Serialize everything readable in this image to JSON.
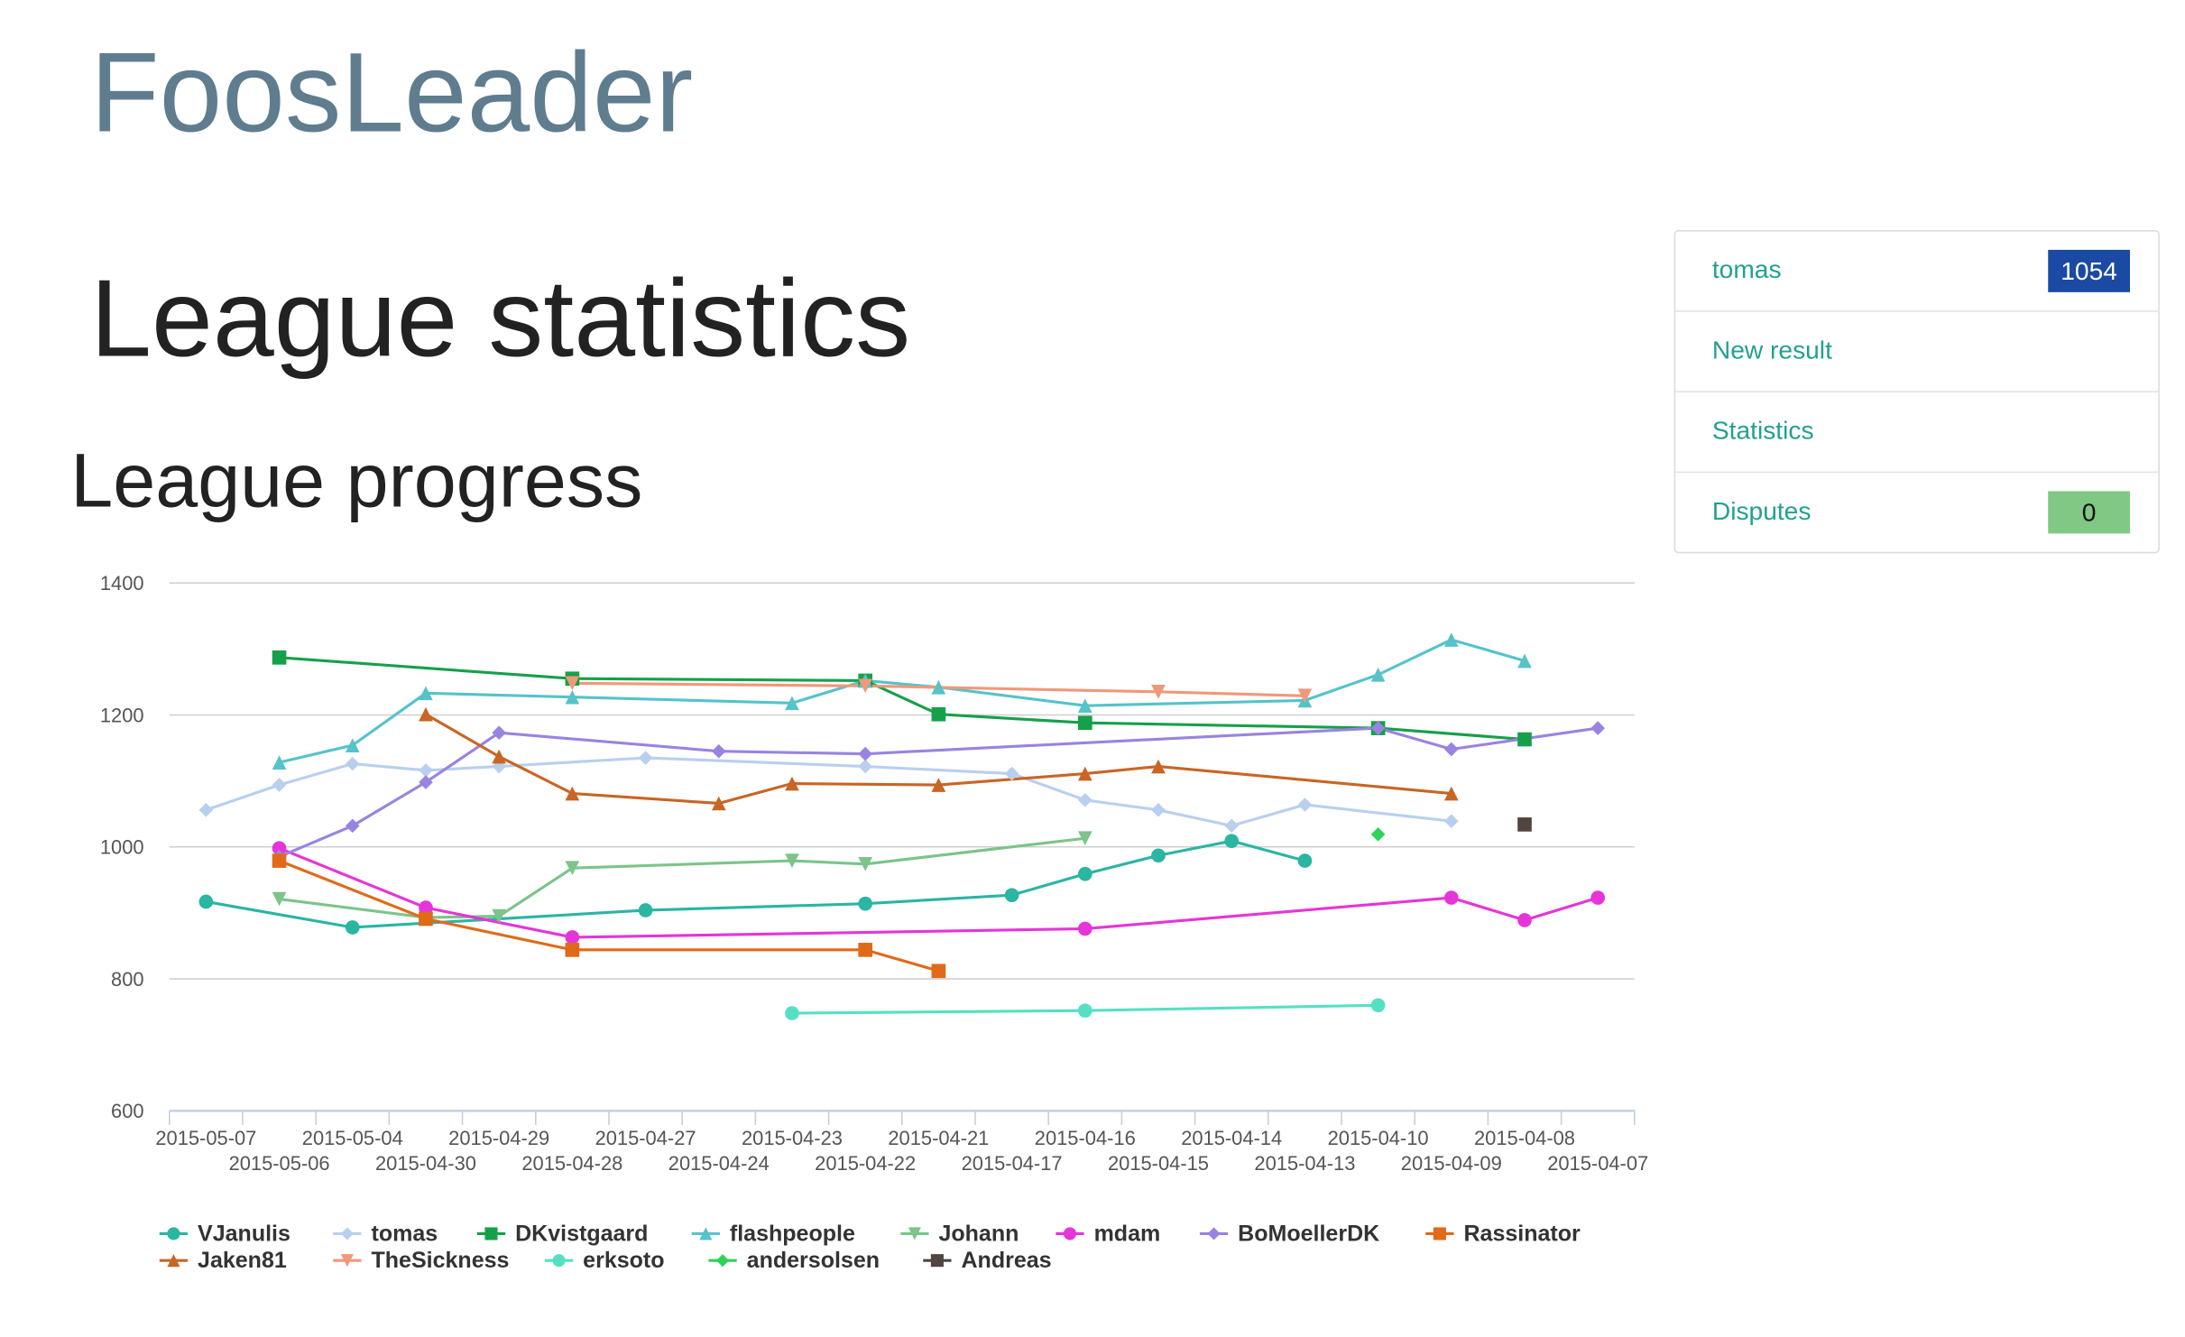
{
  "header": {
    "title": "FoosLeader"
  },
  "page": {
    "title": "League statistics",
    "section_title": "League progress"
  },
  "sidebar": {
    "items": [
      {
        "label": "tomas",
        "badge": 1054,
        "badge_color": "#1a4aa3"
      },
      {
        "label": "New result"
      },
      {
        "label": "Statistics"
      },
      {
        "label": "Disputes",
        "badge": 0,
        "badge_color": "#80c883"
      }
    ]
  },
  "chart_data": {
    "type": "line",
    "categories": [
      "2015-05-07",
      "2015-05-06",
      "2015-05-04",
      "2015-04-30",
      "2015-04-29",
      "2015-04-28",
      "2015-04-27",
      "2015-04-24",
      "2015-04-23",
      "2015-04-22",
      "2015-04-21",
      "2015-04-17",
      "2015-04-16",
      "2015-04-15",
      "2015-04-14",
      "2015-04-13",
      "2015-04-10",
      "2015-04-09",
      "2015-04-08",
      "2015-04-07"
    ],
    "ylim": [
      600,
      1400
    ],
    "yticks": [
      600,
      800,
      1000,
      1200,
      1400
    ],
    "grid": true,
    "connect_nulls": true,
    "legend": "bottom",
    "series": [
      {
        "name": "VJanulis",
        "color": "#2bb5a3",
        "marker": "circle",
        "values": [
          917,
          null,
          878,
          null,
          null,
          null,
          904,
          null,
          null,
          914,
          null,
          927,
          959,
          987,
          1009,
          979,
          null,
          null,
          null,
          null
        ]
      },
      {
        "name": "tomas",
        "color": "#b8d0ee",
        "marker": "diamond",
        "values": [
          1056,
          1094,
          1126,
          1116,
          1122,
          null,
          1135,
          null,
          null,
          1122,
          null,
          1111,
          1071,
          1056,
          1032,
          1064,
          null,
          1039,
          null,
          null
        ]
      },
      {
        "name": "DKvistgaard",
        "color": "#16a04a",
        "marker": "square",
        "values": [
          null,
          1287,
          null,
          null,
          null,
          1255,
          null,
          null,
          null,
          1252,
          1201,
          null,
          1188,
          null,
          null,
          null,
          1180,
          null,
          1163,
          null
        ]
      },
      {
        "name": "flashpeople",
        "color": "#55c3c9",
        "marker": "triangle",
        "values": [
          null,
          1128,
          1154,
          1233,
          null,
          1227,
          null,
          null,
          1218,
          1252,
          1242,
          null,
          1214,
          null,
          null,
          1222,
          1261,
          1314,
          1282,
          null
        ]
      },
      {
        "name": "Johann",
        "color": "#7cc48a",
        "marker": "triangle-down",
        "values": [
          null,
          921,
          null,
          893,
          895,
          968,
          null,
          null,
          979,
          974,
          null,
          null,
          1013,
          null,
          null,
          null,
          null,
          null,
          null,
          null
        ]
      },
      {
        "name": "mdam",
        "color": "#e535d8",
        "marker": "circle",
        "values": [
          null,
          998,
          null,
          908,
          null,
          863,
          null,
          null,
          null,
          null,
          null,
          null,
          876,
          null,
          null,
          null,
          null,
          923,
          889,
          923
        ]
      },
      {
        "name": "BoMoellerDK",
        "color": "#9a83e0",
        "marker": "diamond",
        "values": [
          null,
          985,
          1032,
          1098,
          1173,
          null,
          null,
          1145,
          null,
          1141,
          null,
          null,
          null,
          null,
          null,
          null,
          1180,
          1148,
          null,
          1180
        ]
      },
      {
        "name": "Rassinator",
        "color": "#e06a1a",
        "marker": "square",
        "values": [
          null,
          979,
          null,
          891,
          null,
          844,
          null,
          null,
          null,
          844,
          812,
          null,
          null,
          null,
          null,
          null,
          null,
          null,
          null,
          null
        ]
      },
      {
        "name": "Jaken81",
        "color": "#c96525",
        "marker": "triangle",
        "values": [
          null,
          null,
          null,
          1201,
          1137,
          1081,
          null,
          1066,
          1096,
          null,
          1094,
          null,
          1111,
          1122,
          null,
          null,
          null,
          1081,
          null,
          null
        ]
      },
      {
        "name": "TheSickness",
        "color": "#f0987a",
        "marker": "triangle-down",
        "values": [
          null,
          null,
          null,
          null,
          null,
          1248,
          null,
          null,
          null,
          1244,
          null,
          null,
          null,
          1235,
          null,
          1229,
          null,
          null,
          null,
          null
        ]
      },
      {
        "name": "erksoto",
        "color": "#55e0c4",
        "marker": "circle",
        "values": [
          null,
          null,
          null,
          null,
          null,
          null,
          null,
          null,
          748,
          null,
          null,
          null,
          752,
          null,
          null,
          null,
          760,
          null,
          null,
          null
        ]
      },
      {
        "name": "andersolsen",
        "color": "#2dd35a",
        "marker": "diamond",
        "values": [
          null,
          null,
          null,
          null,
          null,
          null,
          null,
          null,
          null,
          null,
          null,
          null,
          null,
          null,
          null,
          null,
          1019,
          null,
          null,
          null
        ]
      },
      {
        "name": "Andreas",
        "color": "#504540",
        "marker": "square",
        "values": [
          null,
          null,
          null,
          null,
          null,
          null,
          null,
          null,
          null,
          null,
          null,
          null,
          null,
          null,
          null,
          null,
          null,
          null,
          1034,
          null
        ]
      }
    ]
  }
}
